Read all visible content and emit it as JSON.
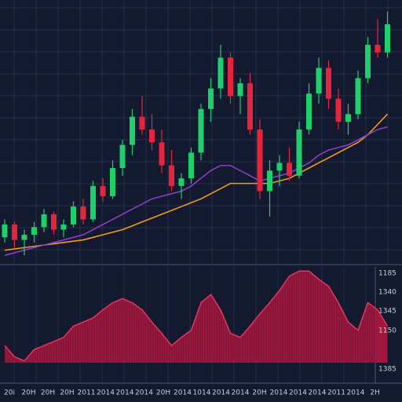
{
  "chart_data": [
    {
      "type": "candlestick",
      "ylim": [
        0,
        100
      ],
      "candles": [
        [
          10,
          17,
          8,
          15
        ],
        [
          15,
          16,
          6,
          9
        ],
        [
          9,
          13,
          3,
          11
        ],
        [
          11,
          16,
          8,
          14
        ],
        [
          14,
          21,
          12,
          19
        ],
        [
          19,
          20,
          11,
          13
        ],
        [
          13,
          17,
          10,
          15
        ],
        [
          15,
          24,
          14,
          22
        ],
        [
          22,
          25,
          15,
          17
        ],
        [
          17,
          32,
          16,
          30
        ],
        [
          30,
          33,
          24,
          26
        ],
        [
          26,
          40,
          25,
          37
        ],
        [
          37,
          48,
          34,
          46
        ],
        [
          46,
          60,
          42,
          57
        ],
        [
          57,
          65,
          50,
          52
        ],
        [
          52,
          58,
          44,
          47
        ],
        [
          47,
          52,
          35,
          38
        ],
        [
          38,
          44,
          28,
          30
        ],
        [
          30,
          35,
          25,
          33
        ],
        [
          33,
          45,
          31,
          43
        ],
        [
          43,
          62,
          40,
          60
        ],
        [
          60,
          72,
          55,
          68
        ],
        [
          68,
          85,
          64,
          80
        ],
        [
          80,
          82,
          62,
          65
        ],
        [
          65,
          72,
          58,
          70
        ],
        [
          70,
          74,
          50,
          52
        ],
        [
          52,
          56,
          25,
          28
        ],
        [
          28,
          40,
          18,
          36
        ],
        [
          36,
          42,
          30,
          39
        ],
        [
          39,
          45,
          32,
          34
        ],
        [
          34,
          55,
          33,
          52
        ],
        [
          52,
          70,
          50,
          66
        ],
        [
          66,
          80,
          62,
          76
        ],
        [
          76,
          79,
          60,
          64
        ],
        [
          64,
          68,
          52,
          55
        ],
        [
          55,
          62,
          50,
          58
        ],
        [
          58,
          75,
          56,
          72
        ],
        [
          72,
          88,
          70,
          85
        ],
        [
          85,
          95,
          80,
          82
        ],
        [
          82,
          98,
          80,
          93
        ]
      ],
      "up_color": "#1ecf6a",
      "down_color": "#e8243c",
      "series": [
        {
          "color": "#f39a1c",
          "values": [
            5,
            5.5,
            6,
            6.5,
            7,
            7.5,
            8,
            8.5,
            9,
            10,
            11,
            12,
            13,
            14.5,
            16,
            17.5,
            19,
            20.5,
            22,
            23.5,
            25,
            27,
            29,
            31,
            31,
            31,
            31,
            31,
            32,
            33,
            35,
            37,
            39,
            41,
            43,
            45,
            47,
            50,
            54,
            58
          ]
        },
        {
          "color": "#8a3fc4",
          "values": [
            3,
            4,
            5,
            6,
            7,
            8,
            9,
            10,
            11,
            13,
            15,
            17,
            19,
            21,
            23,
            25,
            26,
            27,
            28,
            30,
            33,
            36,
            38,
            38,
            36,
            34,
            32,
            33,
            34,
            35,
            37,
            39,
            42,
            44,
            45,
            46,
            48,
            50,
            52,
            53
          ]
        }
      ]
    },
    {
      "type": "area",
      "ylim": [
        0,
        100
      ],
      "color": "#b0173f",
      "values": [
        23,
        12,
        8,
        19,
        23,
        27,
        31,
        42,
        46,
        50,
        58,
        65,
        69,
        65,
        58,
        46,
        35,
        23,
        31,
        38,
        65,
        73,
        58,
        35,
        31,
        42,
        54,
        65,
        77,
        91,
        96,
        96,
        88,
        81,
        65,
        46,
        38,
        65,
        58,
        42
      ],
      "axis_labels": [
        "1185",
        "1340",
        "1345",
        "1150",
        "1385"
      ],
      "x_labels": [
        "20i",
        "20H",
        "20H",
        "20H",
        "2011",
        "2014",
        "2014",
        "2014",
        "20H",
        "2014",
        "1014",
        "2014",
        "2014",
        "20H",
        "2014",
        "2014",
        "2014",
        "2011",
        "2014",
        "2H"
      ]
    }
  ]
}
